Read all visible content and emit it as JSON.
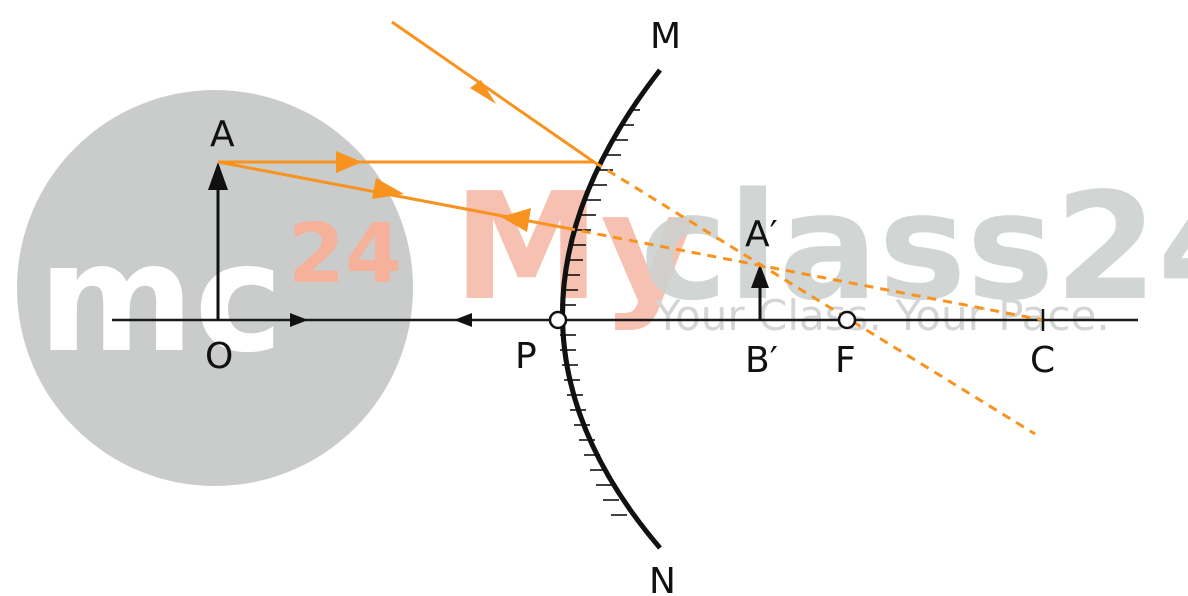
{
  "labels": {
    "M": "M",
    "N": "N",
    "A": "A",
    "O": "O",
    "P": "P",
    "A_prime": "A′",
    "B_prime": "B′",
    "F": "F",
    "C": "C"
  },
  "watermark": {
    "logo_mc": "mc",
    "logo_24": "24",
    "brand_my": "My",
    "brand_class": "class24",
    "tagline": "Your Class. Your Pace."
  },
  "colors": {
    "ray": "#F7931E",
    "axis": "#1a1a1a",
    "watermark_circle": "#C9CCCB",
    "watermark_orange": "#F5A58C",
    "watermark_gray": "#C2C7C5"
  }
}
